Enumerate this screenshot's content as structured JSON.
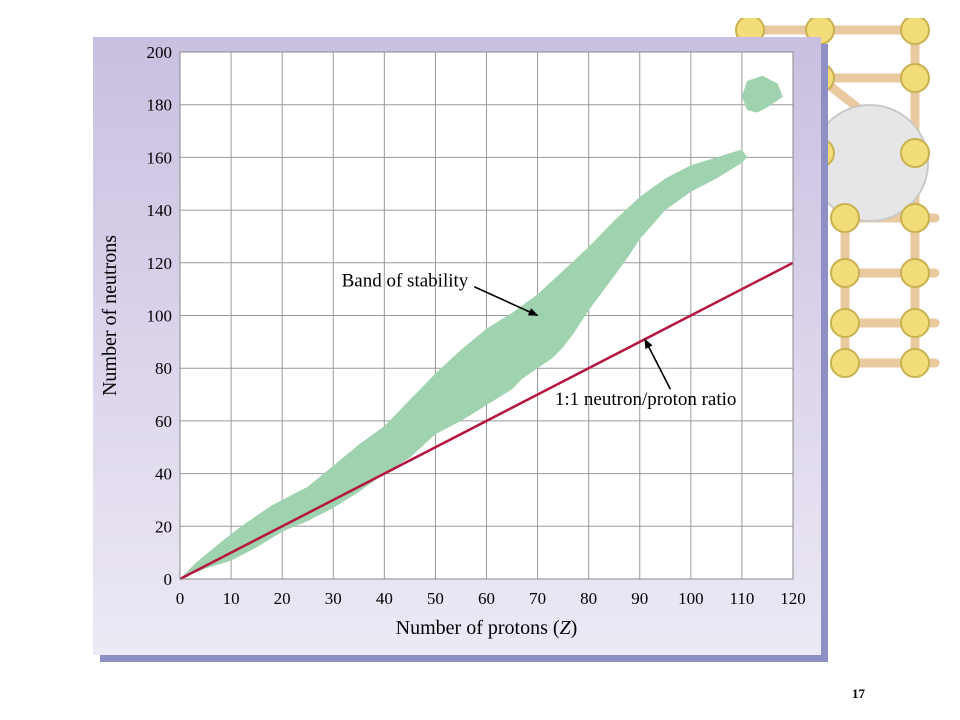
{
  "slide": {
    "number": "17"
  },
  "decoration": {
    "name": "atom lattice illustration",
    "colors": {
      "atom": "#f3dc7a",
      "bond": "#e9c9a0",
      "core": "#e6e6e6"
    }
  },
  "chart_data": {
    "type": "area",
    "title": "",
    "xlabel_prefix": "Number of protons (",
    "xlabel_var": "Z",
    "xlabel_suffix": ")",
    "ylabel": "Number of neutrons",
    "xlim": [
      0,
      120
    ],
    "ylim": [
      0,
      200
    ],
    "xticks": [
      "0",
      "10",
      "20",
      "30",
      "40",
      "50",
      "60",
      "70",
      "80",
      "90",
      "100",
      "110",
      "120"
    ],
    "yticks": [
      "0",
      "20",
      "40",
      "60",
      "80",
      "100",
      "120",
      "140",
      "160",
      "180",
      "200"
    ],
    "grid": true,
    "colors": {
      "band": "#9fd3b0",
      "ratio_line": "#b5173f",
      "grid": "#9a9a9a",
      "plot_bg": "#ffffff"
    },
    "series": [
      {
        "name": "Band of stability",
        "upper": [
          [
            0,
            0
          ],
          [
            3,
            6
          ],
          [
            8,
            14
          ],
          [
            12,
            20
          ],
          [
            18,
            28
          ],
          [
            25,
            35
          ],
          [
            30,
            43
          ],
          [
            35,
            51
          ],
          [
            40,
            58
          ],
          [
            45,
            68
          ],
          [
            50,
            78
          ],
          [
            55,
            87
          ],
          [
            60,
            95
          ],
          [
            65,
            101
          ],
          [
            70,
            108
          ],
          [
            75,
            117
          ],
          [
            80,
            126
          ],
          [
            85,
            136
          ],
          [
            90,
            145
          ],
          [
            95,
            152
          ],
          [
            100,
            157
          ],
          [
            105,
            160
          ],
          [
            110,
            163
          ],
          [
            111,
            160
          ],
          [
            110,
            158
          ]
        ],
        "lower": [
          [
            110,
            158
          ],
          [
            105,
            152
          ],
          [
            100,
            147
          ],
          [
            95,
            140
          ],
          [
            90,
            129
          ],
          [
            88,
            123
          ],
          [
            85,
            115
          ],
          [
            80,
            102
          ],
          [
            77,
            93
          ],
          [
            75,
            88
          ],
          [
            73,
            84
          ],
          [
            70,
            80
          ],
          [
            67,
            76
          ],
          [
            65,
            72
          ],
          [
            60,
            66
          ],
          [
            55,
            60
          ],
          [
            50,
            55
          ],
          [
            45,
            46
          ],
          [
            40,
            40
          ],
          [
            35,
            33
          ],
          [
            30,
            27
          ],
          [
            25,
            22
          ],
          [
            20,
            18
          ],
          [
            15,
            12
          ],
          [
            10,
            7
          ],
          [
            5,
            4
          ],
          [
            0,
            0
          ]
        ]
      },
      {
        "name": "Band of stability",
        "island": [
          [
            111,
            189
          ],
          [
            114,
            191
          ],
          [
            117,
            188
          ],
          [
            118,
            183
          ],
          [
            115,
            179
          ],
          [
            113,
            177
          ],
          [
            111,
            178
          ],
          [
            110,
            183
          ]
        ]
      },
      {
        "name": "1:1 neutron/proton ratio",
        "points": [
          [
            0,
            0
          ],
          [
            120,
            120
          ]
        ]
      }
    ],
    "annotations": [
      {
        "text": "Band of stability",
        "label_at": [
          58,
          111
        ],
        "arrow_from": [
          58,
          109
        ],
        "arrow_to": [
          70,
          100
        ]
      },
      {
        "text": "1:1 neutron/proton ratio",
        "label_at": [
          73,
          66
        ],
        "arrow_from": [
          96,
          72
        ],
        "arrow_to": [
          91,
          91
        ]
      }
    ]
  }
}
